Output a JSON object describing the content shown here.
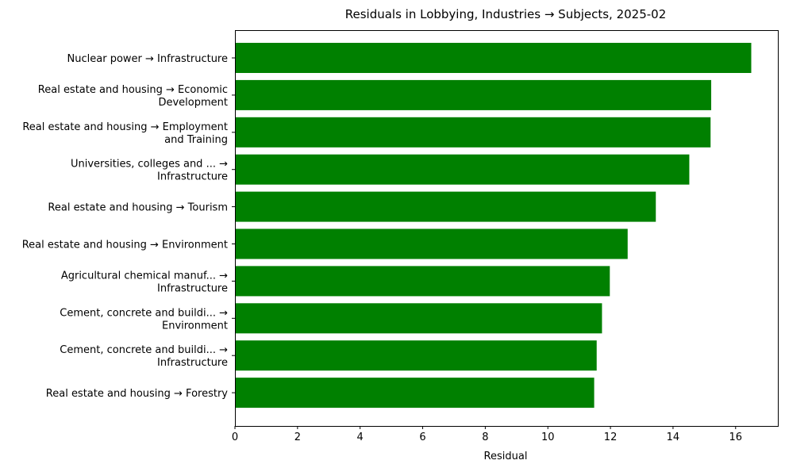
{
  "chart_data": {
    "type": "bar",
    "orientation": "horizontal",
    "title": "Residuals in Lobbying, Industries → Subjects, 2025-02",
    "xlabel": "Residual",
    "ylabel": "",
    "xlim": [
      0,
      17.35
    ],
    "xticks": [
      0,
      2,
      4,
      6,
      8,
      10,
      12,
      14,
      16
    ],
    "grid": false,
    "bar_color": "#008000",
    "categories": [
      [
        "Nuclear power → Infrastructure"
      ],
      [
        "Real estate and housing → Economic",
        "Development"
      ],
      [
        "Real estate and housing → Employment",
        "and Training"
      ],
      [
        "Universities, colleges and ... →",
        "Infrastructure"
      ],
      [
        "Real estate and housing → Tourism"
      ],
      [
        "Real estate and housing → Environment"
      ],
      [
        "Agricultural chemical manuf... →",
        "Infrastructure"
      ],
      [
        "Cement, concrete and buildi... →",
        "Environment"
      ],
      [
        "Cement, concrete and buildi... →",
        "Infrastructure"
      ],
      [
        "Real estate and housing → Forestry"
      ]
    ],
    "values": [
      16.5,
      15.22,
      15.2,
      14.52,
      13.45,
      12.55,
      11.98,
      11.73,
      11.56,
      11.48
    ]
  }
}
